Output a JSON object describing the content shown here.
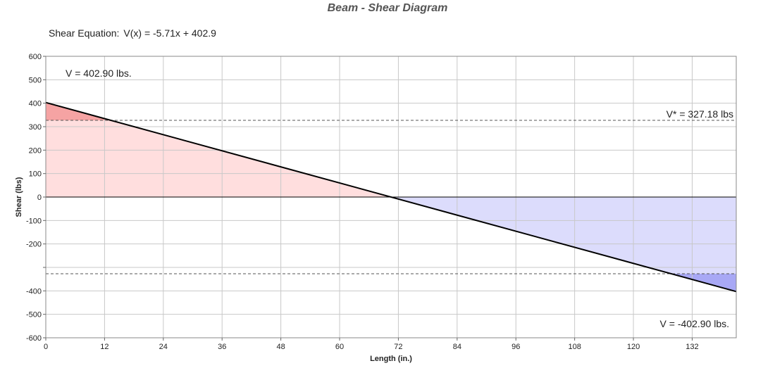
{
  "title": "Beam - Shear Diagram",
  "equation": {
    "label": "Shear Equation:",
    "value": "V(x) = -5.71x + 402.9"
  },
  "chart_data": {
    "type": "area",
    "title": "Beam - Shear Diagram",
    "xlabel": "Length (in.)",
    "ylabel": "Shear (lbs)",
    "xlim": [
      0,
      141
    ],
    "ylim": [
      -600,
      600
    ],
    "x_ticks": [
      0,
      12,
      24,
      36,
      48,
      60,
      72,
      84,
      96,
      108,
      120,
      132
    ],
    "x_tick_labels": [
      "0",
      "12",
      "24",
      "36",
      "48",
      "60",
      "72",
      "84",
      "96",
      "108",
      "120",
      "132"
    ],
    "y_ticks": [
      600,
      500,
      400,
      300,
      200,
      100,
      0,
      -100,
      -200,
      -400,
      -500,
      -600
    ],
    "y_tick_labels": [
      "600",
      "500",
      "400",
      "300",
      "200",
      "100",
      "0",
      "-100",
      "-200",
      "-400",
      "-500",
      "-600"
    ],
    "grid": true,
    "series": [
      {
        "x": [
          0,
          141
        ],
        "y": [
          402.9,
          -402.9
        ]
      }
    ],
    "reference_lines": {
      "allowable": 327.18
    },
    "annotations": {
      "max": "V = 402.90 lbs.",
      "min": "V = -402.90 lbs.",
      "allowable": "V* = 327.18 lbs"
    },
    "colors": {
      "line": "#000000",
      "positive_fill": "#ffdede",
      "positive_exceed": "#f5a3a3",
      "negative_fill": "#dcdcfc",
      "negative_exceed": "#a8a8f5",
      "grid": "#c8c8c8",
      "dashed": "#555555"
    }
  }
}
